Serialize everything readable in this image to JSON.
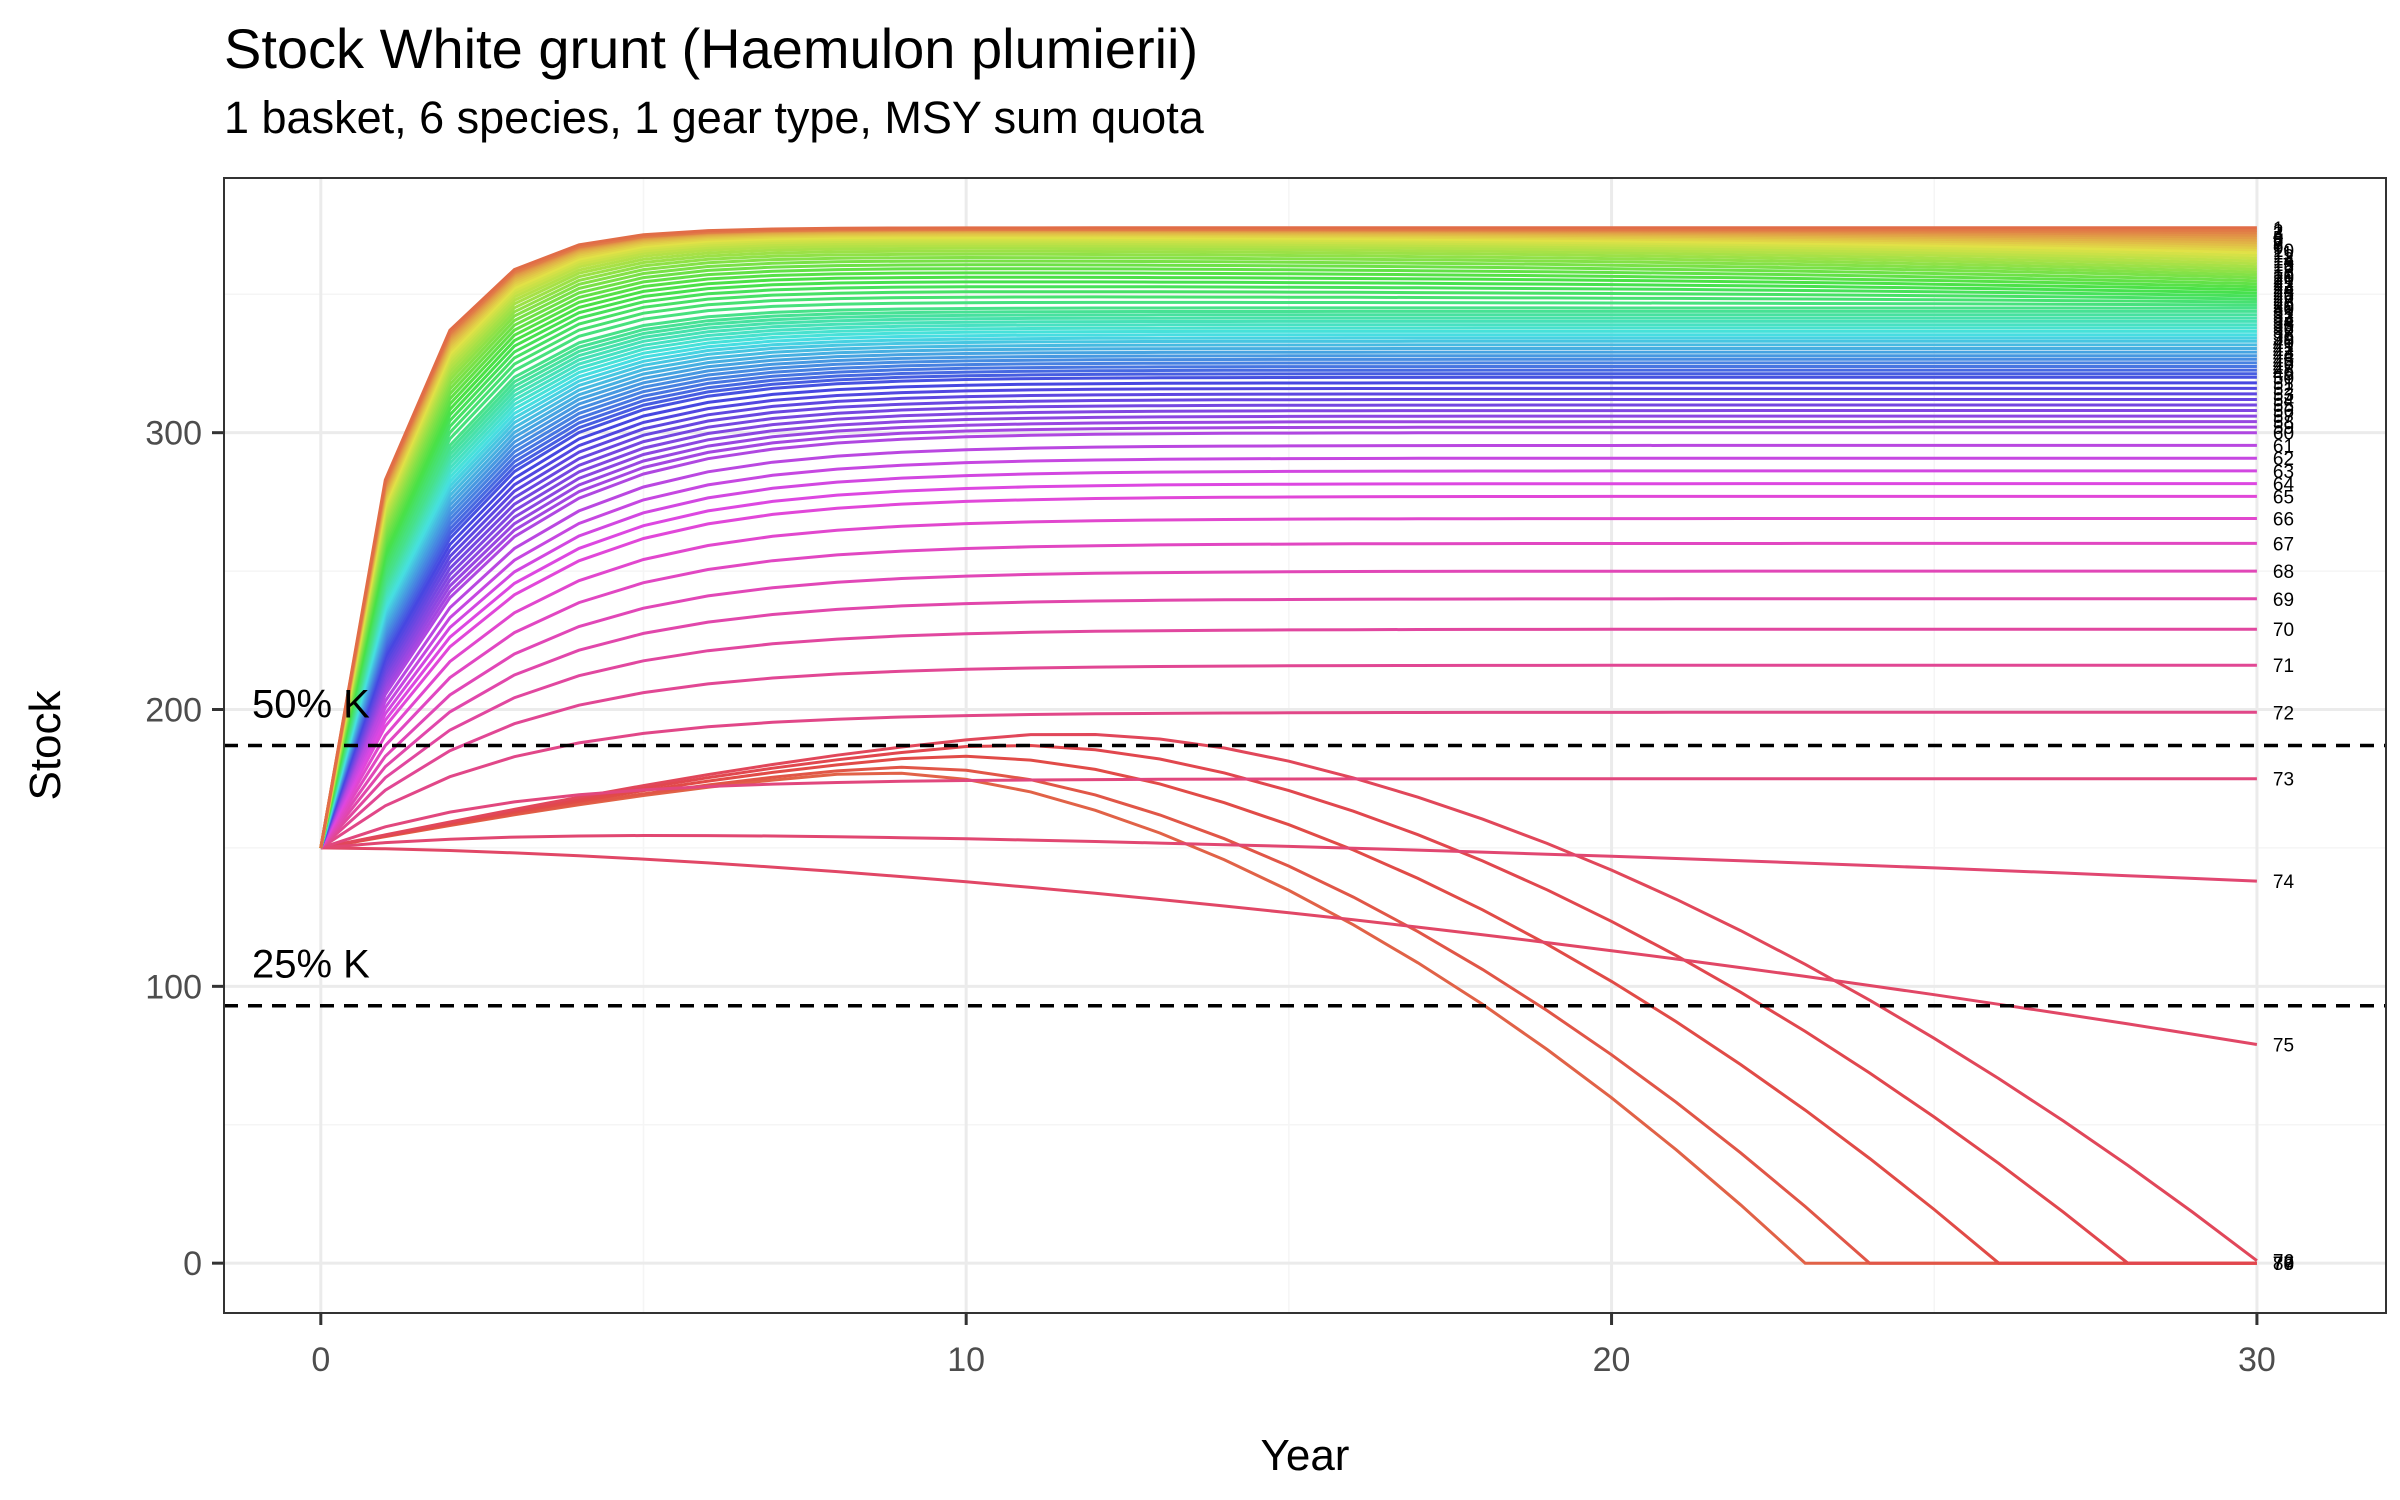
{
  "chart_data": {
    "type": "line",
    "title": "Stock White grunt (Haemulon plumierii)",
    "subtitle": "1 basket, 6 species, 1 gear type, MSY sum quota",
    "xlabel": "Year",
    "ylabel": "Stock",
    "xlim": [
      -1.5,
      32
    ],
    "ylim": [
      -18,
      392
    ],
    "x_ticks": [
      0,
      10,
      20,
      30
    ],
    "y_ticks": [
      0,
      100,
      200,
      300
    ],
    "grid": true,
    "legend": "none",
    "reference_lines": [
      {
        "label": "50% K",
        "y": 187
      },
      {
        "label": "25% K",
        "y": 93
      }
    ],
    "series_count": 80,
    "series_note": "one trajectory per scenario 1-80; end-of-line labels printed at x=30",
    "anchors": [
      {
        "id": 1,
        "final": 374,
        "type": "stable"
      },
      {
        "id": 10,
        "final": 366,
        "type": "stable"
      },
      {
        "id": 20,
        "final": 356,
        "type": "stable"
      },
      {
        "id": 30,
        "final": 345,
        "type": "stable"
      },
      {
        "id": 40,
        "final": 333,
        "type": "stable"
      },
      {
        "id": 50,
        "final": 320,
        "type": "stable"
      },
      {
        "id": 60,
        "final": 300,
        "type": "stable"
      },
      {
        "id": 65,
        "final": 277,
        "type": "stable"
      },
      {
        "id": 66,
        "final": 269,
        "type": "stable"
      },
      {
        "id": 67,
        "final": 260,
        "type": "stable"
      },
      {
        "id": 68,
        "final": 250,
        "type": "stable"
      },
      {
        "id": 69,
        "final": 240,
        "type": "stable"
      },
      {
        "id": 70,
        "final": 229,
        "type": "stable"
      },
      {
        "id": 71,
        "final": 216,
        "type": "stable"
      },
      {
        "id": 72,
        "final": 199,
        "type": "stable"
      },
      {
        "id": 73,
        "final": 175,
        "type": "decline"
      },
      {
        "id": 74,
        "final": 138,
        "type": "decline"
      },
      {
        "id": 75,
        "final": 79,
        "type": "decline"
      },
      {
        "id": 76,
        "final": 5,
        "type": "collapse",
        "collapse_year": 30
      },
      {
        "id": 77,
        "final": 0,
        "type": "collapse",
        "collapse_year": 28
      },
      {
        "id": 78,
        "final": 0,
        "type": "collapse",
        "collapse_year": 26
      },
      {
        "id": 79,
        "final": 0,
        "type": "collapse",
        "collapse_year": 24
      },
      {
        "id": 80,
        "final": 0,
        "type": "collapse",
        "collapse_year": 23
      }
    ],
    "end_labels": [
      "1",
      "2",
      "3",
      "4",
      "5",
      "6",
      "7",
      "8",
      "9",
      "10",
      "11",
      "12",
      "13",
      "14",
      "15",
      "16",
      "17",
      "18",
      "19",
      "20",
      "21",
      "22",
      "23",
      "24",
      "25",
      "26",
      "27",
      "28",
      "29",
      "30",
      "31",
      "32",
      "33",
      "34",
      "35",
      "36",
      "37",
      "38",
      "39",
      "40",
      "41",
      "42",
      "43",
      "44",
      "45",
      "46",
      "47",
      "48",
      "49",
      "50",
      "51",
      "52",
      "53",
      "54",
      "55",
      "56",
      "57",
      "58",
      "59",
      "60",
      "61",
      "62",
      "63",
      "64",
      "65",
      "66",
      "67",
      "68",
      "69",
      "70",
      "71",
      "72",
      "73",
      "74",
      "75",
      "76",
      "77",
      "78",
      "79",
      "80"
    ],
    "start_value": 150,
    "colors": {
      "ref_line": "#000000",
      "panel_border": "#333333",
      "grid_major": "#ebebeb",
      "grid_minor": "#f5f5f5"
    }
  }
}
